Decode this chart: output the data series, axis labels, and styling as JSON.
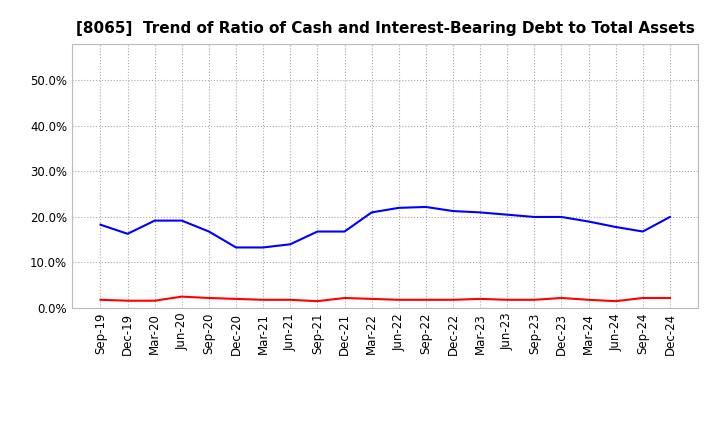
{
  "title": "[8065]  Trend of Ratio of Cash and Interest-Bearing Debt to Total Assets",
  "ylim": [
    0.0,
    0.58
  ],
  "yticks": [
    0.0,
    0.1,
    0.2,
    0.3,
    0.4,
    0.5
  ],
  "x_labels": [
    "Sep-19",
    "Dec-19",
    "Mar-20",
    "Jun-20",
    "Sep-20",
    "Dec-20",
    "Mar-21",
    "Jun-21",
    "Sep-21",
    "Dec-21",
    "Mar-22",
    "Jun-22",
    "Sep-22",
    "Dec-22",
    "Mar-23",
    "Jun-23",
    "Sep-23",
    "Dec-23",
    "Mar-24",
    "Jun-24",
    "Sep-24",
    "Dec-24"
  ],
  "cash": [
    0.018,
    0.016,
    0.016,
    0.025,
    0.022,
    0.02,
    0.018,
    0.018,
    0.015,
    0.022,
    0.02,
    0.018,
    0.018,
    0.018,
    0.02,
    0.018,
    0.018,
    0.022,
    0.018,
    0.015,
    0.022,
    0.022
  ],
  "interest_bearing_debt": [
    0.183,
    0.163,
    0.192,
    0.192,
    0.168,
    0.133,
    0.133,
    0.14,
    0.168,
    0.168,
    0.21,
    0.22,
    0.222,
    0.213,
    0.21,
    0.205,
    0.2,
    0.2,
    0.19,
    0.178,
    0.168,
    0.2
  ],
  "cash_color": "#ff0000",
  "debt_color": "#0000ff",
  "background_color": "#ffffff",
  "grid_color": "#aaaaaa",
  "title_fontsize": 11,
  "tick_fontsize": 8.5,
  "legend_fontsize": 10
}
